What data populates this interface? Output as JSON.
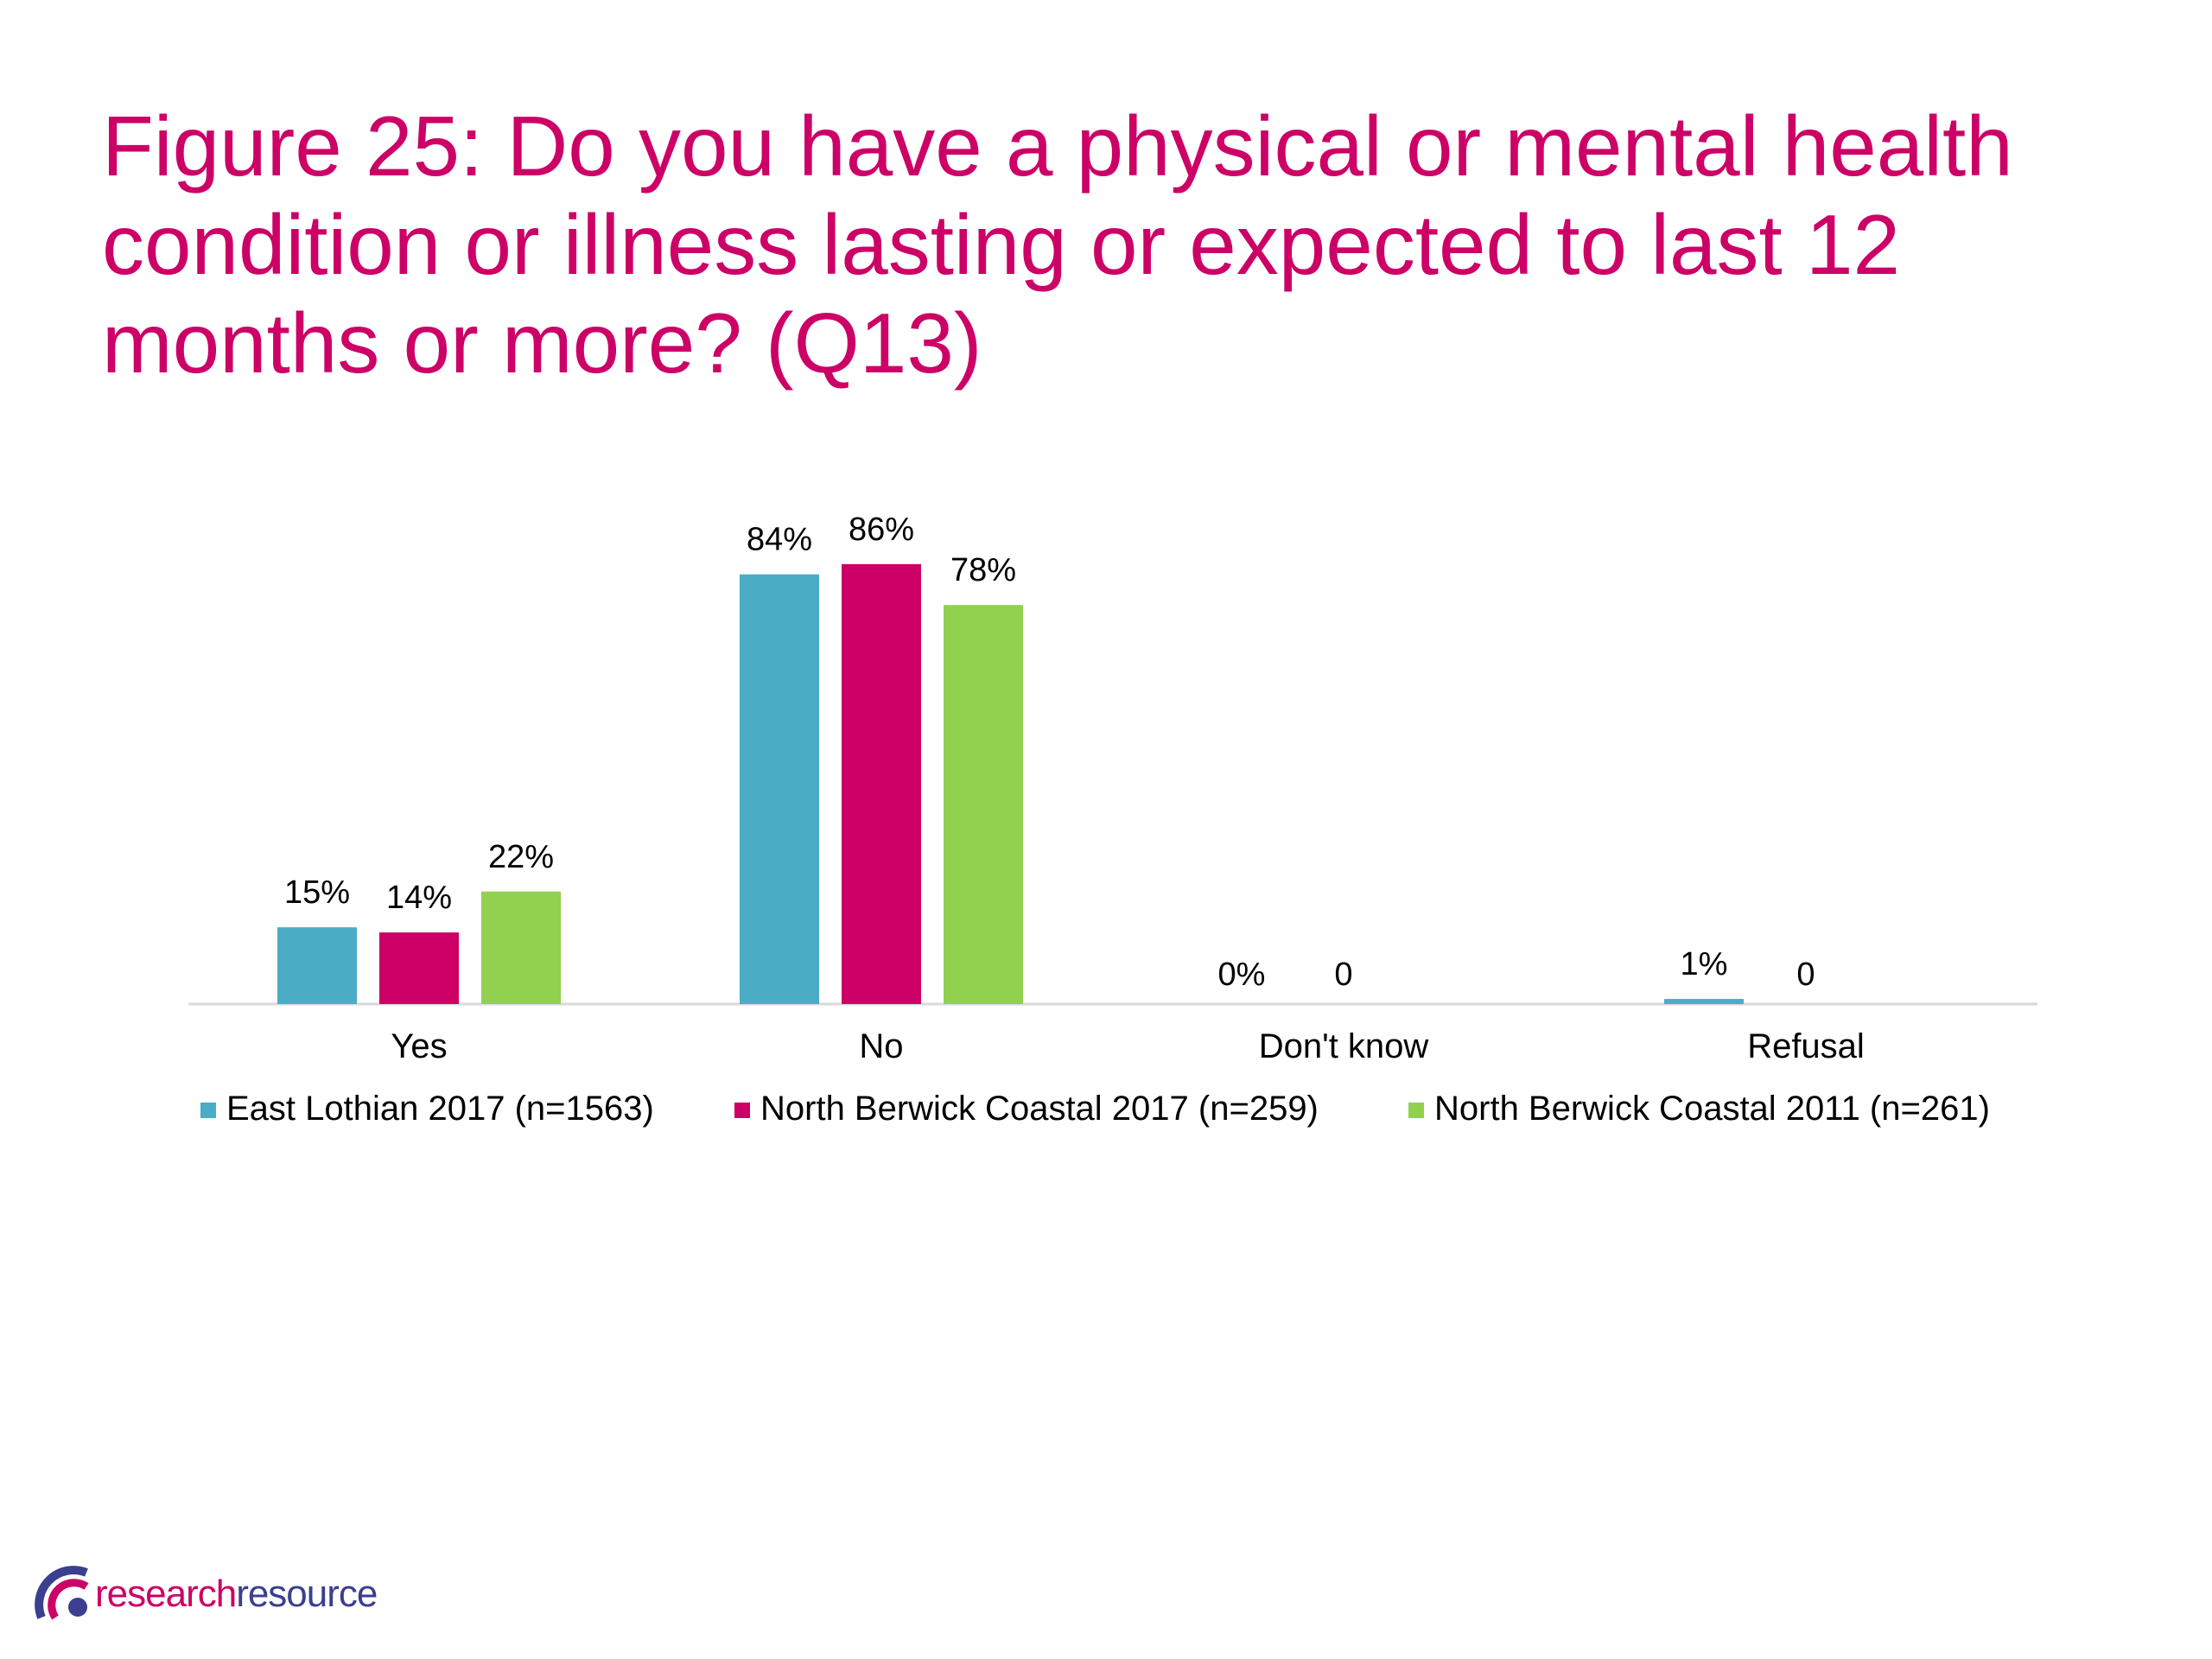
{
  "title": "Figure 25: Do you have a physical or mental health condition or illness lasting or expected to last 12 months or more? (Q13)",
  "colors": {
    "title": "#cc0066",
    "series": [
      "#4bacc6",
      "#cc0066",
      "#92d050"
    ],
    "axis": "#d9d9d9",
    "text": "#000000"
  },
  "chart_data": {
    "type": "bar",
    "categories": [
      "Yes",
      "No",
      "Don't know",
      "Refusal"
    ],
    "series": [
      {
        "name": "East Lothian 2017 (n=1563)",
        "values": [
          15,
          84,
          0,
          1
        ],
        "labels": [
          "15%",
          "84%",
          "0%",
          "1%"
        ]
      },
      {
        "name": "North Berwick Coastal 2017 (n=259)",
        "values": [
          14,
          86,
          0,
          0
        ],
        "labels": [
          "14%",
          "86%",
          "0",
          "0"
        ]
      },
      {
        "name": "North Berwick Coastal 2011 (n=261)",
        "values": [
          22,
          78,
          null,
          null
        ],
        "labels": [
          "22%",
          "78%",
          "",
          ""
        ]
      }
    ],
    "ylim": [
      0,
      100
    ],
    "grid": false,
    "legend": "bottom"
  },
  "logo": {
    "part1": "research",
    "part2": "resource"
  }
}
